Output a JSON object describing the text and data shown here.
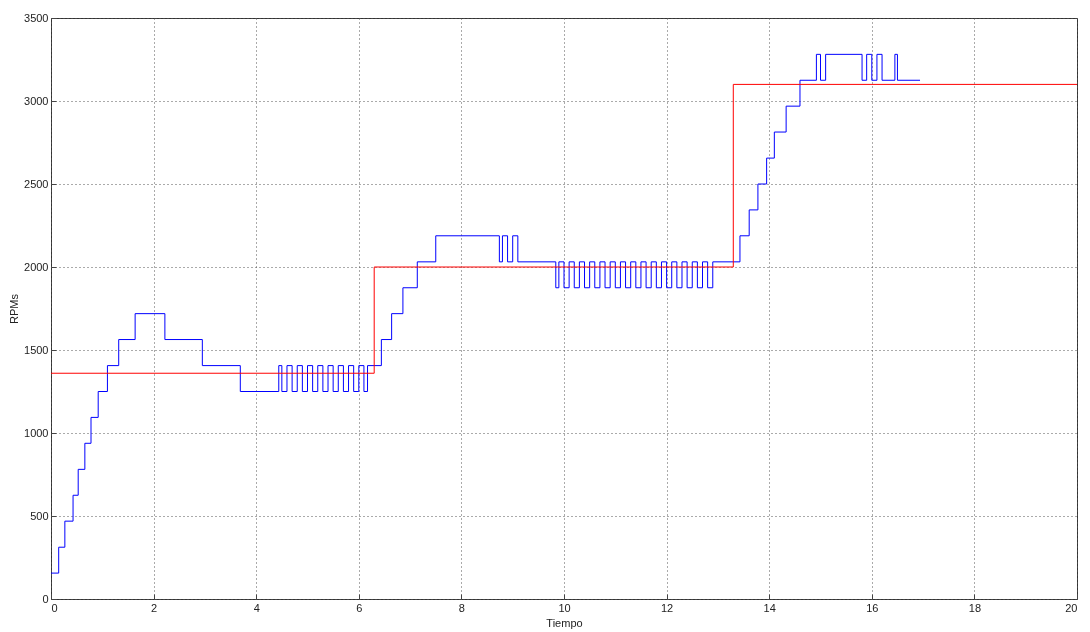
{
  "chart_data": {
    "type": "step",
    "xlabel": "Tiempo",
    "ylabel": "RPMs",
    "xlim": [
      0,
      20
    ],
    "ylim": [
      0,
      3500
    ],
    "xticks": [
      0,
      2,
      4,
      6,
      8,
      10,
      12,
      14,
      16,
      18,
      20
    ],
    "yticks": [
      0,
      500,
      1000,
      1500,
      2000,
      2500,
      3000,
      3500
    ],
    "grid": true,
    "series": [
      {
        "color": "#0000ff",
        "x": [
          0,
          0.15,
          0.27,
          0.43,
          0.53,
          0.66,
          0.78,
          0.92,
          1.1,
          1.32,
          1.64,
          2.22,
          2.95,
          3.69,
          4.44,
          4.5,
          4.6,
          4.7,
          4.8,
          4.9,
          5.0,
          5.1,
          5.2,
          5.3,
          5.4,
          5.5,
          5.6,
          5.7,
          5.8,
          5.9,
          6.0,
          6.1,
          6.17,
          6.44,
          6.64,
          6.86,
          7.14,
          7.5,
          8.74,
          8.8,
          8.9,
          9.0,
          9.1,
          9.84,
          9.9,
          10.0,
          10.1,
          10.2,
          10.3,
          10.4,
          10.5,
          10.6,
          10.7,
          10.8,
          10.9,
          11.0,
          11.1,
          11.2,
          11.3,
          11.4,
          11.5,
          11.6,
          11.7,
          11.8,
          11.9,
          12.0,
          12.1,
          12.2,
          12.3,
          12.4,
          12.5,
          12.6,
          12.7,
          12.8,
          12.9,
          13.43,
          13.61,
          13.78,
          13.95,
          14.1,
          14.33,
          14.6,
          14.92,
          15.0,
          15.1,
          15.81,
          15.9,
          16.0,
          16.1,
          16.2,
          16.45,
          16.5,
          16.94
        ],
        "values": [
          156,
          312,
          469,
          625,
          781,
          938,
          1094,
          1250,
          1406,
          1563,
          1719,
          1563,
          1406,
          1250,
          1406,
          1250,
          1406,
          1250,
          1406,
          1250,
          1406,
          1250,
          1406,
          1250,
          1406,
          1250,
          1406,
          1250,
          1406,
          1250,
          1406,
          1250,
          1406,
          1563,
          1719,
          1875,
          2031,
          2188,
          2031,
          2188,
          2031,
          2188,
          2031,
          1875,
          2031,
          1875,
          2031,
          1875,
          2031,
          1875,
          2031,
          1875,
          2031,
          1875,
          2031,
          1875,
          2031,
          1875,
          2031,
          1875,
          2031,
          1875,
          2031,
          1875,
          2031,
          1875,
          2031,
          1875,
          2031,
          1875,
          2031,
          1875,
          2031,
          1875,
          2031,
          2188,
          2344,
          2500,
          2656,
          2813,
          2969,
          3125,
          3281,
          3125,
          3281,
          3125,
          3281,
          3125,
          3281,
          3125,
          3281,
          3125,
          3125
        ]
      },
      {
        "color": "#ff0000",
        "x": [
          0,
          6.3,
          13.3,
          20
        ],
        "values": [
          1360,
          2000,
          3100,
          3100
        ]
      }
    ]
  }
}
